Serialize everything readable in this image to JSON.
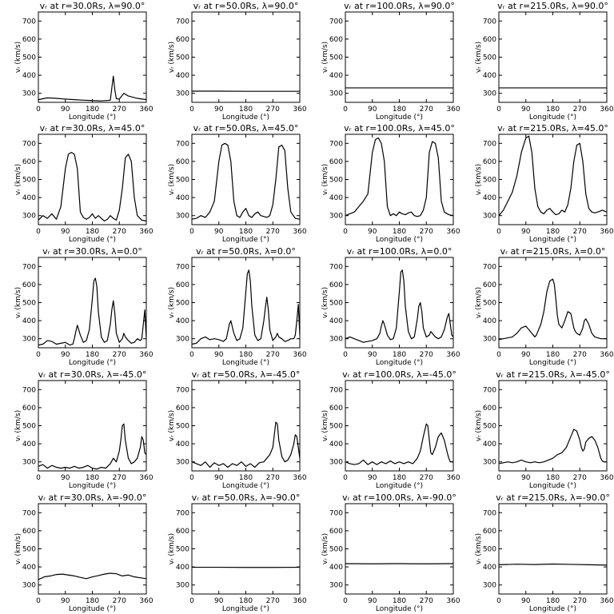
{
  "figure": {
    "xlabel": "Longitude  (°)",
    "ylabel": "vᵣ  (km/s)",
    "xticks": [
      0,
      90,
      180,
      270,
      360
    ],
    "yticks": [
      300,
      400,
      500,
      600,
      700
    ],
    "xlim": [
      0,
      360
    ],
    "ylim": [
      250,
      750
    ],
    "line_color": "#000000"
  },
  "chart_data": [
    {
      "type": "line",
      "title": "vᵣ at r=30.0Rs, λ=90.0°",
      "x": [
        0,
        30,
        60,
        90,
        120,
        150,
        180,
        210,
        240,
        245,
        250,
        255,
        260,
        270,
        285,
        300,
        330,
        360
      ],
      "values": [
        265,
        275,
        272,
        268,
        265,
        262,
        260,
        258,
        262,
        330,
        395,
        320,
        270,
        268,
        300,
        285,
        272,
        265
      ]
    },
    {
      "type": "line",
      "title": "vᵣ at r=50.0Rs, λ=90.0°",
      "x": [
        0,
        90,
        180,
        270,
        360
      ],
      "values": [
        312,
        312,
        311,
        311,
        311
      ]
    },
    {
      "type": "line",
      "title": "vᵣ at r=100.0Rs, λ=90.0°",
      "x": [
        0,
        90,
        180,
        270,
        360
      ],
      "values": [
        330,
        330,
        330,
        330,
        330
      ]
    },
    {
      "type": "line",
      "title": "vᵣ at r=215.0Rs, λ=90.0°",
      "x": [
        0,
        90,
        180,
        270,
        360
      ],
      "values": [
        330,
        330,
        330,
        330,
        330
      ]
    },
    {
      "type": "line",
      "title": "vᵣ at r=30.0Rs, λ=45.0°",
      "x": [
        0,
        15,
        30,
        45,
        60,
        75,
        90,
        100,
        110,
        120,
        130,
        140,
        150,
        160,
        170,
        180,
        190,
        200,
        210,
        220,
        230,
        240,
        250,
        260,
        270,
        280,
        290,
        300,
        310,
        320,
        330,
        345,
        360
      ],
      "values": [
        275,
        300,
        285,
        310,
        280,
        350,
        560,
        640,
        650,
        640,
        560,
        320,
        290,
        280,
        290,
        310,
        285,
        300,
        285,
        270,
        280,
        300,
        285,
        275,
        330,
        450,
        620,
        640,
        600,
        400,
        300,
        275,
        270
      ]
    },
    {
      "type": "line",
      "title": "vᵣ at r=50.0Rs, λ=45.0°",
      "x": [
        0,
        15,
        30,
        45,
        60,
        75,
        90,
        100,
        110,
        120,
        130,
        140,
        150,
        160,
        170,
        180,
        190,
        200,
        210,
        220,
        230,
        240,
        250,
        260,
        270,
        280,
        290,
        300,
        310,
        320,
        330,
        345,
        360
      ],
      "values": [
        280,
        285,
        300,
        290,
        320,
        380,
        600,
        690,
        700,
        690,
        600,
        380,
        300,
        290,
        320,
        340,
        300,
        290,
        310,
        320,
        300,
        295,
        290,
        300,
        360,
        500,
        680,
        690,
        660,
        450,
        320,
        285,
        280
      ]
    },
    {
      "type": "line",
      "title": "vᵣ at r=100.0Rs, λ=45.0°",
      "x": [
        0,
        15,
        30,
        45,
        60,
        75,
        90,
        100,
        110,
        120,
        130,
        140,
        150,
        160,
        170,
        180,
        190,
        200,
        210,
        220,
        230,
        240,
        250,
        260,
        270,
        280,
        290,
        300,
        310,
        320,
        330,
        345,
        360
      ],
      "values": [
        300,
        310,
        320,
        350,
        380,
        420,
        650,
        720,
        730,
        700,
        600,
        350,
        300,
        310,
        300,
        320,
        310,
        305,
        315,
        320,
        300,
        295,
        300,
        330,
        400,
        650,
        710,
        700,
        620,
        380,
        320,
        305,
        300
      ]
    },
    {
      "type": "line",
      "title": "vᵣ at r=215.0Rs, λ=45.0°",
      "x": [
        0,
        15,
        30,
        45,
        60,
        75,
        90,
        100,
        110,
        120,
        130,
        140,
        150,
        160,
        170,
        180,
        190,
        200,
        210,
        220,
        230,
        240,
        250,
        260,
        270,
        280,
        290,
        300,
        310,
        320,
        330,
        345,
        360
      ],
      "values": [
        300,
        330,
        380,
        430,
        520,
        650,
        730,
        740,
        650,
        450,
        350,
        320,
        310,
        330,
        340,
        320,
        305,
        310,
        330,
        320,
        360,
        450,
        600,
        690,
        700,
        600,
        420,
        340,
        320,
        315,
        320,
        330,
        320
      ]
    },
    {
      "type": "line",
      "title": "vᵣ at r=30.0Rs, λ=0.0°",
      "x": [
        0,
        15,
        30,
        45,
        60,
        75,
        90,
        105,
        115,
        120,
        125,
        130,
        140,
        150,
        160,
        170,
        180,
        185,
        190,
        195,
        200,
        210,
        220,
        230,
        240,
        245,
        250,
        255,
        260,
        270,
        280,
        285,
        290,
        300,
        310,
        320,
        330,
        340,
        345,
        350,
        355,
        360
      ],
      "values": [
        265,
        270,
        290,
        285,
        270,
        275,
        280,
        265,
        270,
        300,
        340,
        375,
        320,
        280,
        290,
        350,
        520,
        620,
        635,
        590,
        450,
        310,
        280,
        290,
        380,
        460,
        510,
        440,
        330,
        280,
        300,
        330,
        310,
        290,
        275,
        280,
        300,
        290,
        300,
        380,
        460,
        300
      ]
    },
    {
      "type": "line",
      "title": "vᵣ at r=50.0Rs, λ=0.0°",
      "x": [
        0,
        15,
        30,
        45,
        60,
        75,
        90,
        105,
        115,
        120,
        125,
        130,
        140,
        150,
        160,
        170,
        180,
        185,
        190,
        195,
        200,
        210,
        220,
        230,
        240,
        245,
        250,
        255,
        260,
        270,
        280,
        285,
        290,
        300,
        310,
        320,
        330,
        340,
        345,
        350,
        355,
        360
      ],
      "values": [
        270,
        275,
        300,
        310,
        295,
        300,
        295,
        285,
        300,
        340,
        380,
        400,
        330,
        290,
        300,
        360,
        560,
        660,
        680,
        620,
        480,
        320,
        290,
        300,
        400,
        470,
        530,
        460,
        350,
        290,
        310,
        330,
        310,
        300,
        285,
        290,
        300,
        300,
        320,
        400,
        490,
        320
      ]
    },
    {
      "type": "line",
      "title": "vᵣ at r=100.0Rs, λ=0.0°",
      "x": [
        0,
        15,
        30,
        45,
        60,
        75,
        90,
        105,
        115,
        120,
        125,
        130,
        140,
        150,
        160,
        170,
        180,
        185,
        190,
        195,
        200,
        210,
        220,
        230,
        240,
        245,
        250,
        255,
        260,
        270,
        280,
        285,
        290,
        300,
        310,
        320,
        330,
        340,
        345,
        350,
        355,
        360
      ],
      "values": [
        300,
        310,
        300,
        290,
        280,
        285,
        290,
        300,
        330,
        370,
        400,
        380,
        320,
        295,
        300,
        360,
        560,
        670,
        680,
        620,
        480,
        340,
        300,
        310,
        410,
        480,
        500,
        450,
        360,
        310,
        320,
        340,
        330,
        310,
        300,
        310,
        350,
        420,
        440,
        380,
        320,
        310
      ]
    },
    {
      "type": "line",
      "title": "vᵣ at r=215.0Rs, λ=0.0°",
      "x": [
        0,
        15,
        30,
        45,
        60,
        75,
        90,
        105,
        115,
        120,
        125,
        130,
        140,
        150,
        160,
        170,
        180,
        185,
        190,
        195,
        200,
        210,
        220,
        230,
        240,
        245,
        250,
        255,
        260,
        270,
        280,
        285,
        290,
        300,
        310,
        320,
        330,
        340,
        345,
        350,
        355,
        360
      ],
      "values": [
        295,
        300,
        305,
        310,
        330,
        360,
        370,
        340,
        320,
        310,
        320,
        340,
        380,
        450,
        560,
        620,
        630,
        600,
        520,
        430,
        380,
        360,
        400,
        450,
        440,
        400,
        360,
        340,
        330,
        320,
        360,
        400,
        410,
        380,
        330,
        310,
        305,
        300,
        300,
        300,
        300,
        300
      ]
    },
    {
      "type": "line",
      "title": "vᵣ at r=30.0Rs, λ=-45.0°",
      "x": [
        0,
        15,
        30,
        45,
        60,
        75,
        90,
        105,
        120,
        135,
        150,
        165,
        180,
        195,
        210,
        225,
        240,
        250,
        260,
        270,
        275,
        280,
        285,
        290,
        300,
        310,
        320,
        330,
        340,
        345,
        350,
        355,
        360
      ],
      "values": [
        275,
        285,
        265,
        280,
        270,
        265,
        270,
        265,
        275,
        265,
        270,
        280,
        265,
        260,
        270,
        265,
        290,
        320,
        300,
        360,
        420,
        500,
        510,
        420,
        320,
        290,
        300,
        320,
        380,
        440,
        420,
        350,
        340
      ]
    },
    {
      "type": "line",
      "title": "vᵣ at r=50.0Rs, λ=-45.0°",
      "x": [
        0,
        15,
        30,
        45,
        60,
        75,
        90,
        105,
        120,
        135,
        150,
        165,
        180,
        195,
        210,
        225,
        240,
        250,
        260,
        270,
        275,
        280,
        285,
        290,
        300,
        310,
        320,
        330,
        340,
        345,
        350,
        355,
        360
      ],
      "values": [
        300,
        290,
        280,
        300,
        270,
        295,
        280,
        290,
        270,
        290,
        280,
        300,
        275,
        290,
        270,
        295,
        300,
        320,
        340,
        380,
        450,
        520,
        510,
        420,
        330,
        300,
        310,
        340,
        400,
        450,
        440,
        380,
        320
      ]
    },
    {
      "type": "line",
      "title": "vᵣ at r=100.0Rs, λ=-45.0°",
      "x": [
        0,
        15,
        30,
        45,
        60,
        75,
        90,
        105,
        120,
        135,
        150,
        165,
        180,
        195,
        210,
        225,
        240,
        250,
        260,
        270,
        275,
        280,
        285,
        290,
        300,
        310,
        320,
        330,
        340,
        345,
        350,
        355,
        360
      ],
      "values": [
        300,
        290,
        285,
        290,
        310,
        285,
        300,
        285,
        300,
        290,
        305,
        290,
        300,
        290,
        300,
        290,
        320,
        360,
        440,
        510,
        500,
        420,
        350,
        340,
        380,
        440,
        460,
        420,
        350,
        320,
        300,
        300,
        300
      ]
    },
    {
      "type": "line",
      "title": "vᵣ at r=215.0Rs, λ=-45.0°",
      "x": [
        0,
        15,
        30,
        45,
        60,
        75,
        90,
        105,
        120,
        135,
        150,
        165,
        180,
        195,
        210,
        225,
        240,
        250,
        260,
        270,
        275,
        280,
        285,
        290,
        300,
        310,
        320,
        330,
        340,
        345,
        350,
        355,
        360
      ],
      "values": [
        290,
        295,
        300,
        295,
        300,
        310,
        300,
        295,
        300,
        295,
        300,
        310,
        320,
        340,
        350,
        380,
        440,
        480,
        470,
        420,
        380,
        360,
        370,
        410,
        430,
        440,
        420,
        380,
        320,
        305,
        300,
        300,
        300
      ]
    },
    {
      "type": "line",
      "title": "vᵣ at r=30.0Rs, λ=-90.0°",
      "x": [
        0,
        20,
        40,
        60,
        80,
        100,
        120,
        140,
        160,
        180,
        200,
        220,
        240,
        260,
        280,
        300,
        320,
        340,
        360
      ],
      "values": [
        330,
        345,
        350,
        358,
        360,
        355,
        350,
        342,
        335,
        345,
        352,
        360,
        365,
        362,
        350,
        355,
        345,
        340,
        335
      ]
    },
    {
      "type": "line",
      "title": "vᵣ at r=50.0Rs, λ=-90.0°",
      "x": [
        0,
        90,
        180,
        270,
        360
      ],
      "values": [
        398,
        398,
        397,
        397,
        398
      ]
    },
    {
      "type": "line",
      "title": "vᵣ at r=100.0Rs, λ=-90.0°",
      "x": [
        0,
        90,
        180,
        270,
        360
      ],
      "values": [
        418,
        417,
        418,
        417,
        418
      ]
    },
    {
      "type": "line",
      "title": "vᵣ at r=215.0Rs, λ=-90.0°",
      "x": [
        0,
        60,
        120,
        180,
        240,
        300,
        360
      ],
      "values": [
        412,
        415,
        413,
        416,
        414,
        412,
        410
      ]
    }
  ]
}
